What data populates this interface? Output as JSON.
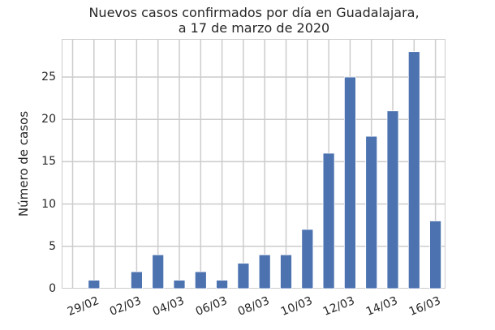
{
  "chart_data": {
    "type": "bar",
    "title": "Nuevos casos confirmados por día en Guadalajara,\na 17 de marzo de 2020",
    "title_lines": [
      "Nuevos casos confirmados por día en Guadalajara,",
      "a 17 de marzo de 2020"
    ],
    "xlabel": "",
    "ylabel": "Número de casos",
    "categories": [
      "28/02",
      "29/02",
      "01/03",
      "02/03",
      "03/03",
      "04/03",
      "05/03",
      "06/03",
      "07/03",
      "08/03",
      "09/03",
      "10/03",
      "11/03",
      "12/03",
      "13/03",
      "14/03",
      "15/03",
      "16/03"
    ],
    "values": [
      0,
      1,
      0,
      2,
      4,
      1,
      2,
      1,
      3,
      4,
      4,
      7,
      16,
      25,
      18,
      21,
      28,
      8
    ],
    "x_tick_labels": [
      "29/02",
      "02/03",
      "04/03",
      "06/03",
      "08/03",
      "10/03",
      "12/03",
      "14/03",
      "16/03"
    ],
    "y_ticks": [
      0,
      5,
      10,
      15,
      20,
      25
    ],
    "ylim": [
      0,
      29.5
    ],
    "grid": true,
    "legend": null,
    "bar_color": "#4c72b0"
  }
}
